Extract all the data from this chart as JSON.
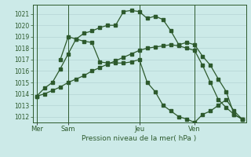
{
  "title": "Pression niveau de la mer( hPa )",
  "bg_color": "#cceae8",
  "grid_color": "#b8d8d8",
  "line_color": "#2d5a2d",
  "ylim": [
    1011.5,
    1021.8
  ],
  "yticks": [
    1012,
    1013,
    1014,
    1015,
    1016,
    1017,
    1018,
    1019,
    1020,
    1021
  ],
  "day_labels": [
    "Mer",
    "Sam",
    "Jeu",
    "Ven"
  ],
  "day_positions": [
    0,
    4,
    13,
    20
  ],
  "total_points": 27,
  "series1_x": [
    0,
    1,
    2,
    3,
    4,
    5,
    6,
    7,
    8,
    9,
    10,
    11,
    12,
    13,
    14,
    15,
    16,
    17,
    18,
    19,
    20,
    21,
    22,
    23,
    24,
    25,
    26
  ],
  "series1_y": [
    1013.8,
    1014.5,
    1015.0,
    1016.2,
    1017.5,
    1018.8,
    1019.3,
    1019.5,
    1019.8,
    1020.0,
    1020.0,
    1021.2,
    1021.3,
    1021.2,
    1020.6,
    1020.8,
    1020.5,
    1019.5,
    1018.3,
    1018.5,
    1018.3,
    1017.3,
    1016.5,
    1015.3,
    1014.2,
    1012.2,
    1011.8
  ],
  "series2_x": [
    0,
    1,
    2,
    3,
    4,
    5,
    6,
    7,
    8,
    9,
    10,
    11,
    12,
    13,
    14,
    15,
    16,
    17,
    18,
    19,
    20,
    21,
    22,
    23,
    24,
    25,
    26
  ],
  "series2_y": [
    1013.8,
    1014.0,
    1014.3,
    1014.6,
    1015.0,
    1015.3,
    1015.6,
    1016.0,
    1016.3,
    1016.6,
    1016.9,
    1017.2,
    1017.5,
    1017.8,
    1018.0,
    1018.1,
    1018.2,
    1018.3,
    1018.2,
    1018.0,
    1017.8,
    1016.5,
    1015.0,
    1013.5,
    1012.8,
    1012.2,
    1011.8
  ],
  "series3_x": [
    3,
    4,
    5,
    6,
    7,
    8,
    9,
    10,
    11,
    12,
    13,
    14,
    15,
    16,
    17,
    18,
    19,
    20,
    21,
    22,
    23,
    24,
    25,
    26
  ],
  "series3_y": [
    1017.0,
    1019.0,
    1018.8,
    1018.6,
    1018.5,
    1016.8,
    1016.7,
    1016.7,
    1016.7,
    1016.8,
    1017.0,
    1015.0,
    1014.2,
    1013.0,
    1012.5,
    1012.0,
    1011.8,
    1011.5,
    1012.2,
    1012.5,
    1013.0,
    1013.5,
    1012.5,
    1011.8
  ]
}
